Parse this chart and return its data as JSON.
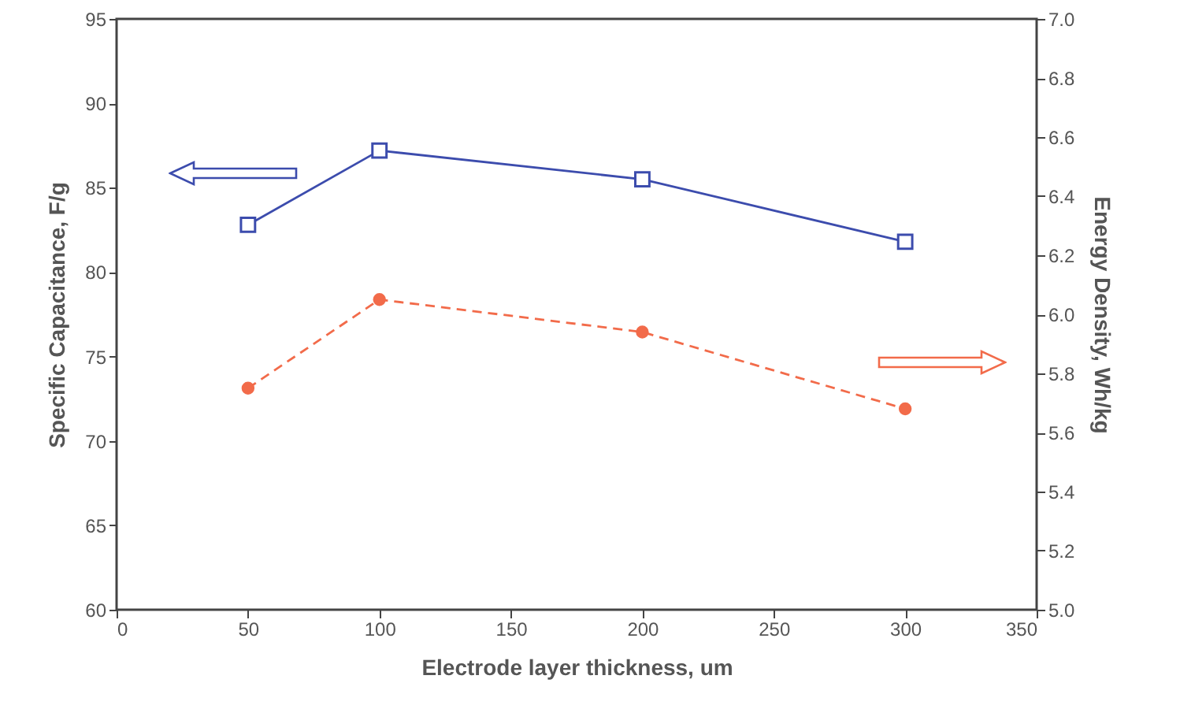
{
  "chart_data": {
    "type": "line",
    "xlabel": "Electrode layer thickness, um",
    "ylabel": "Specific Capacitance, F/g",
    "y2label": "Energy Density, Wh/kg",
    "x": [
      50,
      100,
      200,
      300
    ],
    "series": [
      {
        "color": "#3c4cad",
        "values": [
          82.8,
          87.2,
          85.5,
          81.8
        ],
        "marker": "square",
        "line_style": "solid"
      },
      {
        "color": "#f26b4a",
        "values": [
          5.75,
          6.05,
          5.94,
          5.68
        ],
        "axis": "y2",
        "marker": "circle",
        "line_style": "dashed"
      }
    ],
    "xlim": [
      0,
      350
    ],
    "xticks": [
      0,
      50,
      100,
      150,
      200,
      250,
      300,
      350
    ],
    "ylim": [
      60,
      95
    ],
    "yticks": [
      60,
      65,
      70,
      75,
      80,
      85,
      90,
      95
    ],
    "y2lim": [
      5.0,
      7.0
    ],
    "y2ticks": [
      {
        "value": 5.0,
        "label": "5.0"
      },
      {
        "value": 5.2,
        "label": "5.2"
      },
      {
        "value": 5.4,
        "label": "5.4"
      },
      {
        "value": 5.6,
        "label": "5.6"
      },
      {
        "value": 5.8,
        "label": "5.8"
      },
      {
        "value": 6.0,
        "label": "6.0"
      },
      {
        "value": 6.2,
        "label": "6.2"
      },
      {
        "value": 6.4,
        "label": "6.4"
      },
      {
        "value": 6.6,
        "label": "6.6"
      },
      {
        "value": 6.8,
        "label": "6.8"
      },
      {
        "value": 7.0,
        "label": "7.0"
      }
    ],
    "grid": false
  }
}
